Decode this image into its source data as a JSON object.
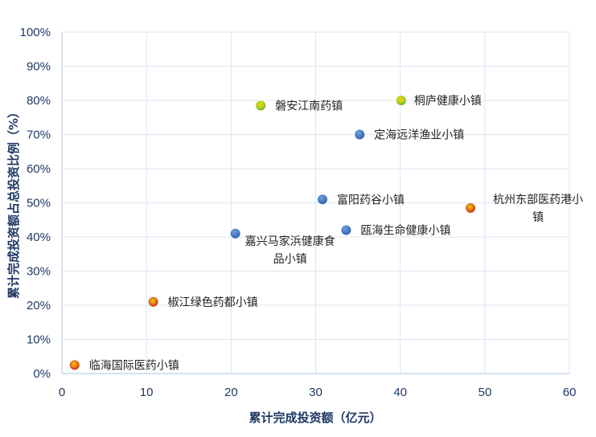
{
  "chart_data": {
    "type": "scatter",
    "title": "",
    "xlabel": "累计完成投资额（亿元）",
    "ylabel": "累计完成投资额占总投资比例（%）",
    "xlim": [
      0,
      60
    ],
    "ylim": [
      0,
      100
    ],
    "x_ticks": [
      "0",
      "10",
      "20",
      "30",
      "40",
      "50",
      "60"
    ],
    "y_ticks": [
      "0%",
      "10%",
      "20%",
      "30%",
      "40%",
      "50%",
      "60%",
      "70%",
      "80%",
      "90%",
      "100%"
    ],
    "grid": true,
    "legend": "none",
    "colors": {
      "blue": "#3d74bd",
      "gradient_red": "#d32f1f",
      "gradient_yellow": "#f5d000",
      "gradient_green": "#6cbf2c"
    },
    "points": [
      {
        "label": "临海国际医药小镇",
        "x": 1.5,
        "y": 2.5,
        "style": "gradient-red"
      },
      {
        "label": "椒江绿色药都小镇",
        "x": 10.8,
        "y": 21,
        "style": "gradient-red"
      },
      {
        "label": "嘉兴马家浜健康食品小镇",
        "x": 20.5,
        "y": 41,
        "style": "blue"
      },
      {
        "label": "磐安江南药镇",
        "x": 23.5,
        "y": 78.5,
        "style": "gradient-green"
      },
      {
        "label": "富阳药谷小镇",
        "x": 30.8,
        "y": 51,
        "style": "blue"
      },
      {
        "label": "瓯海生命健康小镇",
        "x": 33.6,
        "y": 42,
        "style": "blue"
      },
      {
        "label": "定海远洋渔业小镇",
        "x": 35.2,
        "y": 70,
        "style": "blue"
      },
      {
        "label": "桐庐健康小镇",
        "x": 40.1,
        "y": 80,
        "style": "gradient-green"
      },
      {
        "label": "杭州东部医药港小镇",
        "x": 48.3,
        "y": 48.5,
        "style": "gradient-red"
      }
    ]
  }
}
